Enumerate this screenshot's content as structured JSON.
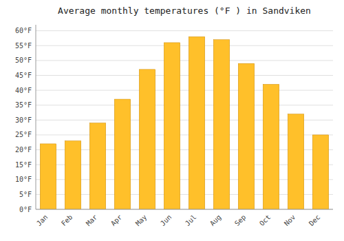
{
  "chart_data": {
    "type": "bar",
    "title": "Average monthly temperatures (°F ) in Sandviken",
    "categories": [
      "Jan",
      "Feb",
      "Mar",
      "Apr",
      "May",
      "Jun",
      "Jul",
      "Aug",
      "Sep",
      "Oct",
      "Nov",
      "Dec"
    ],
    "values": [
      22,
      23,
      29,
      37,
      47,
      56,
      58,
      57,
      49,
      42,
      32,
      25
    ],
    "color": "#FFC02A",
    "ylim": [
      0,
      62
    ],
    "yticks": [
      {
        "value": 0,
        "label": "0°F"
      },
      {
        "value": 5,
        "label": "5°F"
      },
      {
        "value": 10,
        "label": "10°F"
      },
      {
        "value": 15,
        "label": "15°F"
      },
      {
        "value": 20,
        "label": "20°F"
      },
      {
        "value": 25,
        "label": "25°F"
      },
      {
        "value": 30,
        "label": "30°F"
      },
      {
        "value": 35,
        "label": "35°F"
      },
      {
        "value": 40,
        "label": "40°F"
      },
      {
        "value": 45,
        "label": "45°F"
      },
      {
        "value": 50,
        "label": "50°F"
      },
      {
        "value": 55,
        "label": "55°F"
      },
      {
        "value": 60,
        "label": "60°F"
      }
    ],
    "grid": true
  }
}
